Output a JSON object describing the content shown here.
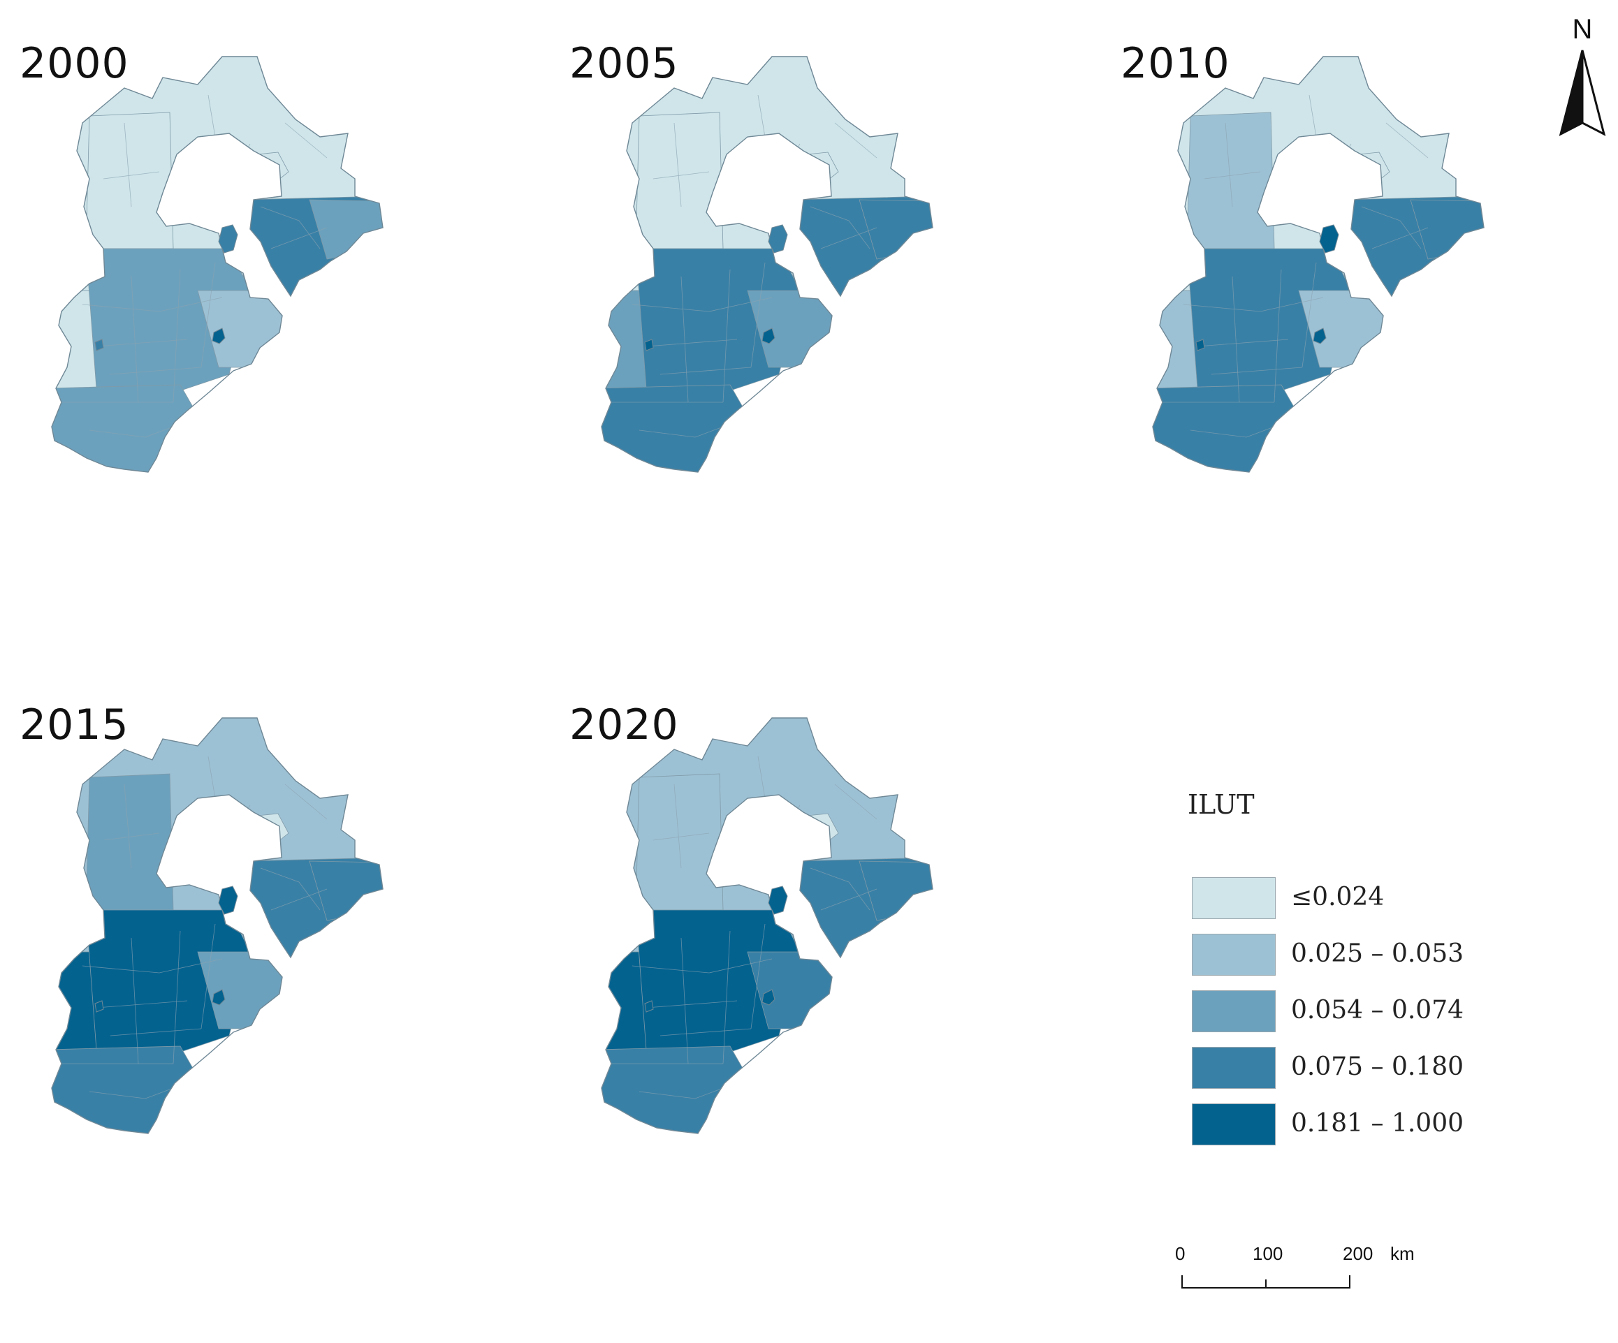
{
  "panels": [
    {
      "id": "p2000",
      "year": "2000",
      "levels": {
        "sw": 0,
        "w": 0,
        "c": 2,
        "s": 2,
        "ts": 3,
        "tn": 3,
        "ne": 2,
        "east": 1,
        "n": 0,
        "bj": 0
      }
    },
    {
      "id": "p2005",
      "year": "2005",
      "levels": {
        "sw": 2,
        "w": 0,
        "c": 3,
        "s": 3,
        "ts": 3,
        "tn": 3,
        "ne": 3,
        "east": 2,
        "n": 0,
        "bj": 0
      }
    },
    {
      "id": "p2010",
      "year": "2010",
      "levels": {
        "sw": 1,
        "w": 1,
        "c": 3,
        "s": 3,
        "ts": 4,
        "tn": 3,
        "ne": 3,
        "east": 1,
        "n": 0,
        "bj": 0
      }
    },
    {
      "id": "p2015",
      "year": "2015",
      "levels": {
        "sw": 4,
        "w": 2,
        "c": 4,
        "s": 3,
        "ts": 4,
        "tn": 3,
        "ne": 3,
        "east": 2,
        "n": 1,
        "bj": 0
      }
    },
    {
      "id": "p2020",
      "year": "2020",
      "levels": {
        "sw": 4,
        "w": 1,
        "c": 4,
        "s": 3,
        "ts": 4,
        "tn": 3,
        "ne": 3,
        "east": 3,
        "n": 1,
        "bj": 0
      }
    }
  ],
  "legend": {
    "title": "ILUT",
    "classes": [
      {
        "label": "≤0.024",
        "color": "#cfe5ea"
      },
      {
        "label": "0.025 – 0.053",
        "color": "#9dc1d4"
      },
      {
        "label": "0.054 – 0.074",
        "color": "#6ca1bd"
      },
      {
        "label": "0.075 – 0.180",
        "color": "#3980a6"
      },
      {
        "label": "0.181 – 1.000",
        "color": "#04628f"
      }
    ]
  },
  "north_arrow": {
    "label": "N"
  },
  "scale_bar": {
    "ticks": [
      "0",
      "100",
      "200"
    ],
    "unit": "km"
  }
}
